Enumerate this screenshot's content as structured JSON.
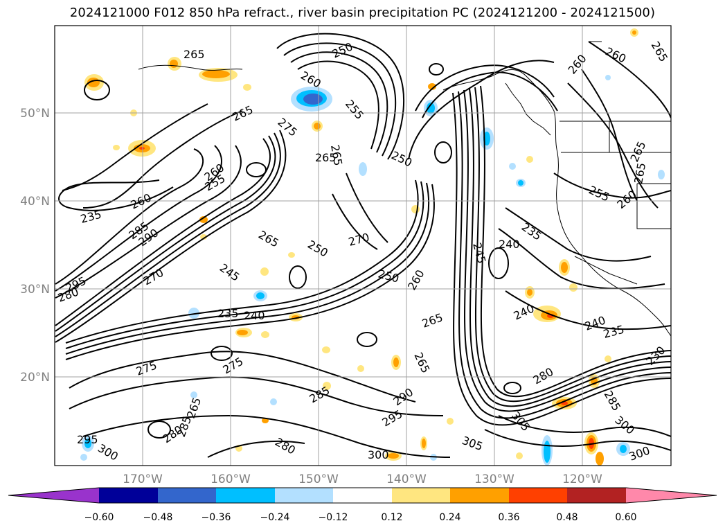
{
  "title": "2024121000 F012 850 hPa refract., river basin precipitation PC (2024121200 - 2024121500)",
  "lat_labels": [
    "50°N",
    "40°N",
    "30°N",
    "20°N"
  ],
  "lon_labels": [
    "170°W",
    "160°W",
    "150°W",
    "140°W",
    "130°W",
    "120°W"
  ],
  "contour_labels": [
    "265",
    "250",
    "260",
    "265",
    "260",
    "275",
    "265",
    "255",
    "265",
    "265",
    "260",
    "255",
    "250",
    "235",
    "260",
    "285",
    "290",
    "265",
    "250",
    "270",
    "245",
    "295",
    "280",
    "270",
    "250",
    "235",
    "240",
    "260",
    "245",
    "240",
    "235",
    "265",
    "275",
    "275",
    "285",
    "290",
    "295",
    "280",
    "265",
    "280",
    "265",
    "285",
    "300",
    "295",
    "305",
    "300",
    "305",
    "280",
    "240",
    "240",
    "235",
    "230",
    "285",
    "300",
    "300",
    "255",
    "260",
    "265",
    "265",
    "260"
  ],
  "colorbar": {
    "ticks": [
      "−0.60",
      "−0.48",
      "−0.36",
      "−0.24",
      "−0.12",
      "0.12",
      "0.24",
      "0.36",
      "0.48",
      "0.60"
    ],
    "colors": [
      "#9933cc",
      "#000099",
      "#3366cc",
      "#00bfff",
      "#b3e0ff",
      "#ffffff",
      "#ffe680",
      "#ffa000",
      "#ff4000",
      "#b22222",
      "#ff88aa"
    ]
  },
  "colors": {
    "positive_light": "#ffe680",
    "positive_mid": "#ffa000",
    "positive_strong": "#ff4000",
    "negative_light": "#b3e0ff",
    "negative_mid": "#00bfff",
    "negative_strong": "#3366cc"
  }
}
